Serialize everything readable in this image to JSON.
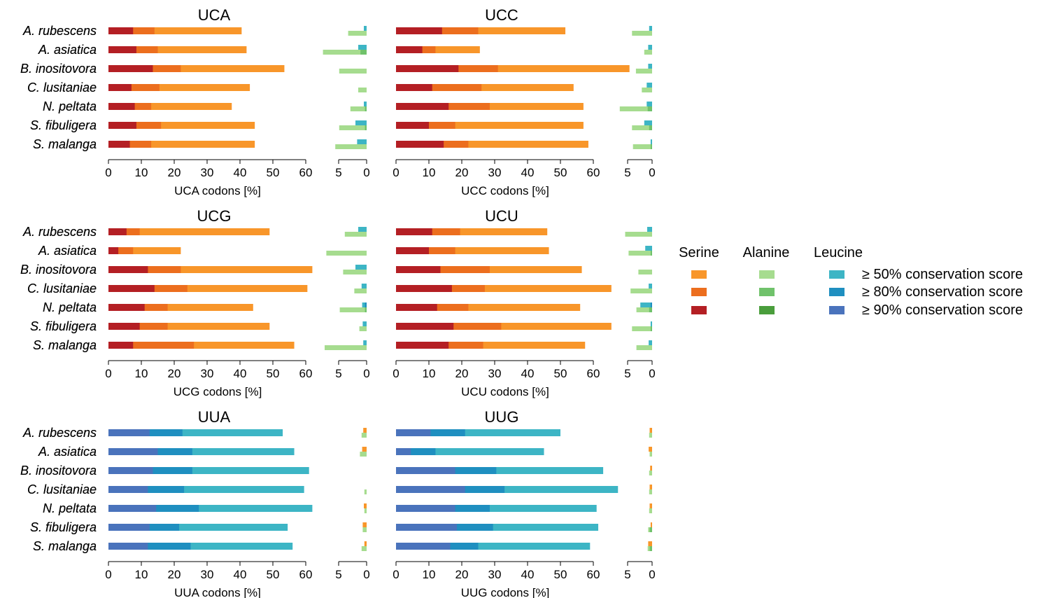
{
  "colors": {
    "serine": {
      "c50": "#F8962A",
      "c80": "#EC6E1E",
      "c90": "#B41F24"
    },
    "alanine": {
      "c50": "#A6DC8F",
      "c80": "#70C26B",
      "c90": "#4A9E3C"
    },
    "leucine": {
      "c50": "#3DB5C5",
      "c80": "#1F8FC0",
      "c90": "#4A73BC"
    }
  },
  "legend": {
    "headers": [
      "Serine",
      "Alanine",
      "Leucine"
    ],
    "rows": [
      "≥ 50% conservation score",
      "≥ 80% conservation score",
      "≥ 90% conservation score"
    ]
  },
  "species": [
    "A. rubescens",
    "A. asiatica",
    "B. inositovora",
    "C. lusitaniae",
    "N. peltata",
    "S. fibuligera",
    "S. malanga"
  ],
  "chart_data": [
    {
      "type": "bar",
      "title": "UCA",
      "xlabel": "UCA codons [%]",
      "main_xlim": [
        0,
        60
      ],
      "main_ticks": [
        0,
        10,
        20,
        30,
        40,
        50,
        60
      ],
      "side_xlim": [
        5,
        0
      ],
      "side_ticks": [
        5,
        0
      ],
      "main_amino_acid": "Serine",
      "main": [
        [
          7.5,
          14,
          40.5
        ],
        [
          8.5,
          15,
          42
        ],
        [
          13.5,
          22,
          53.5
        ],
        [
          7,
          15.5,
          43
        ],
        [
          8,
          13,
          37.5
        ],
        [
          8.5,
          16,
          44.5
        ],
        [
          6.5,
          13,
          44.5
        ]
      ],
      "side_alanine": [
        [
          0,
          0,
          3.3
        ],
        [
          0,
          1.1,
          7.8
        ],
        [
          0,
          0,
          4.9
        ],
        [
          0,
          0,
          1.5
        ],
        [
          0,
          0.3,
          2.9
        ],
        [
          0,
          0.3,
          4.9
        ],
        [
          0,
          0,
          5.6
        ]
      ],
      "side_leucine": [
        [
          0,
          0,
          0.5
        ],
        [
          0,
          0,
          1.5
        ],
        [
          0,
          0,
          0
        ],
        [
          0,
          0,
          0
        ],
        [
          0,
          0,
          0.5
        ],
        [
          0,
          0,
          2.0
        ],
        [
          0,
          0,
          1.7
        ]
      ]
    },
    {
      "type": "bar",
      "title": "UCC",
      "xlabel": "UCC codons [%]",
      "main_xlim": [
        0,
        60
      ],
      "main_ticks": [
        0,
        10,
        20,
        30,
        40,
        50,
        60
      ],
      "side_xlim": [
        5,
        0
      ],
      "side_ticks": [
        5,
        0
      ],
      "main_amino_acid": "Serine",
      "main": [
        [
          14,
          25,
          51.5
        ],
        [
          8,
          12,
          25.5
        ],
        [
          19,
          31,
          71
        ],
        [
          11,
          26,
          54
        ],
        [
          16,
          28.5,
          57
        ],
        [
          10,
          18,
          57
        ],
        [
          14.5,
          22,
          58.5
        ]
      ],
      "side_alanine": [
        [
          0,
          0,
          4.1
        ],
        [
          0,
          0,
          1.6
        ],
        [
          0,
          0,
          3.3
        ],
        [
          0,
          0,
          2.1
        ],
        [
          0,
          0.9,
          6.6
        ],
        [
          0,
          0.6,
          4.1
        ],
        [
          0,
          0.3,
          3.9
        ]
      ],
      "side_leucine": [
        [
          0,
          0,
          0.6
        ],
        [
          0,
          0,
          0.8
        ],
        [
          0,
          0,
          0.8
        ],
        [
          0,
          0,
          1.1
        ],
        [
          0,
          0,
          1.1
        ],
        [
          0,
          0,
          1.6
        ],
        [
          0,
          0,
          0.3
        ]
      ]
    },
    {
      "type": "bar",
      "title": "UCG",
      "xlabel": "UCG codons [%]",
      "main_xlim": [
        0,
        60
      ],
      "main_ticks": [
        0,
        10,
        20,
        30,
        40,
        50,
        60
      ],
      "side_xlim": [
        5,
        0
      ],
      "side_ticks": [
        5,
        0
      ],
      "main_amino_acid": "Serine",
      "main": [
        [
          5.5,
          9.5,
          49
        ],
        [
          3,
          7.5,
          22
        ],
        [
          12,
          22,
          62
        ],
        [
          14,
          24,
          60.5
        ],
        [
          11,
          18,
          44
        ],
        [
          9.5,
          18,
          49
        ],
        [
          7.5,
          26,
          56.5
        ]
      ],
      "side_alanine": [
        [
          0,
          0,
          3.9
        ],
        [
          0,
          0,
          7.2
        ],
        [
          0,
          0,
          4.2
        ],
        [
          0,
          0,
          2.2
        ],
        [
          0,
          0.3,
          4.8
        ],
        [
          0,
          0,
          1.3
        ],
        [
          0,
          0,
          7.5
        ]
      ],
      "side_leucine": [
        [
          0,
          0,
          1.5
        ],
        [
          0,
          0,
          0
        ],
        [
          0,
          0,
          2.0
        ],
        [
          0,
          0,
          0.9
        ],
        [
          0,
          0.3,
          0.8
        ],
        [
          0,
          0,
          0.7
        ],
        [
          0,
          0,
          0.6
        ]
      ]
    },
    {
      "type": "bar",
      "title": "UCU",
      "xlabel": "UCU codons [%]",
      "main_xlim": [
        0,
        60
      ],
      "main_ticks": [
        0,
        10,
        20,
        30,
        40,
        50,
        60
      ],
      "side_xlim": [
        5,
        0
      ],
      "side_ticks": [
        5,
        0
      ],
      "main_amino_acid": "Serine",
      "main": [
        [
          11,
          19.5,
          46
        ],
        [
          10,
          18,
          46.5
        ],
        [
          13.5,
          28.5,
          56.5
        ],
        [
          17,
          27,
          65.5
        ],
        [
          12.5,
          22,
          56
        ],
        [
          17.5,
          32,
          65.5
        ],
        [
          16,
          26.5,
          57.5
        ]
      ],
      "side_alanine": [
        [
          0,
          0,
          5.5
        ],
        [
          0,
          0.3,
          4.8
        ],
        [
          0,
          0,
          2.8
        ],
        [
          0,
          0,
          4.4
        ],
        [
          0,
          0.6,
          3.2
        ],
        [
          0,
          0.3,
          4.1
        ],
        [
          0,
          0,
          3.2
        ]
      ],
      "side_leucine": [
        [
          0,
          0,
          1.0
        ],
        [
          0,
          0,
          1.4
        ],
        [
          0,
          0,
          0
        ],
        [
          0,
          0,
          0.7
        ],
        [
          0,
          0.3,
          2.4
        ],
        [
          0,
          0,
          0.3
        ],
        [
          0,
          0,
          0.7
        ]
      ]
    },
    {
      "type": "bar",
      "title": "UUA",
      "xlabel": "UUA codons [%]",
      "main_xlim": [
        0,
        60
      ],
      "main_ticks": [
        0,
        10,
        20,
        30,
        40,
        50,
        60
      ],
      "side_xlim": [
        5,
        0
      ],
      "side_ticks": [
        5,
        0
      ],
      "main_amino_acid": "Leucine",
      "main": [
        [
          12.5,
          22.5,
          53
        ],
        [
          15,
          25.5,
          56.5
        ],
        [
          13.5,
          25.5,
          61
        ],
        [
          12,
          23,
          59.5
        ],
        [
          14.5,
          27.5,
          62
        ],
        [
          12.5,
          21.5,
          54.5
        ],
        [
          12,
          25,
          56
        ]
      ],
      "side_alanine": [
        [
          0,
          0,
          0.9
        ],
        [
          0,
          0,
          1.2
        ],
        [
          0,
          0,
          0
        ],
        [
          0,
          0,
          0.4
        ],
        [
          0,
          0,
          0.4
        ],
        [
          0,
          0,
          0.7
        ],
        [
          0,
          0,
          0.9
        ]
      ],
      "side_serine": [
        [
          0,
          0,
          0.6
        ],
        [
          0,
          0,
          0.8
        ],
        [
          0,
          0,
          0
        ],
        [
          0,
          0,
          0
        ],
        [
          0,
          0,
          0.5
        ],
        [
          0,
          0,
          0.7
        ],
        [
          0,
          0,
          0.4
        ]
      ]
    },
    {
      "type": "bar",
      "title": "UUG",
      "xlabel": "UUG codons [%]",
      "main_xlim": [
        0,
        60
      ],
      "main_ticks": [
        0,
        10,
        20,
        30,
        40,
        50,
        60
      ],
      "side_xlim": [
        5,
        0
      ],
      "side_ticks": [
        5,
        0
      ],
      "main_amino_acid": "Leucine",
      "main": [
        [
          10.5,
          21,
          50
        ],
        [
          4.5,
          12,
          45
        ],
        [
          18,
          30.5,
          63
        ],
        [
          21,
          33,
          67.5
        ],
        [
          18,
          28.5,
          61
        ],
        [
          18.5,
          29.5,
          61.5
        ],
        [
          16.5,
          25,
          59
        ]
      ],
      "side_alanine": [
        [
          0,
          0,
          0.6
        ],
        [
          0,
          0,
          0.5
        ],
        [
          0,
          0,
          0.6
        ],
        [
          0,
          0,
          0.6
        ],
        [
          0,
          0,
          0.6
        ],
        [
          0,
          0.5,
          0.8
        ],
        [
          0,
          0.5,
          0.9
        ]
      ],
      "side_serine": [
        [
          0,
          0,
          0.5
        ],
        [
          0,
          0,
          0.7
        ],
        [
          0,
          0,
          0.4
        ],
        [
          0,
          0,
          0.5
        ],
        [
          0,
          0,
          0.5
        ],
        [
          0,
          0,
          0.3
        ],
        [
          0,
          0,
          0.8
        ]
      ]
    }
  ]
}
